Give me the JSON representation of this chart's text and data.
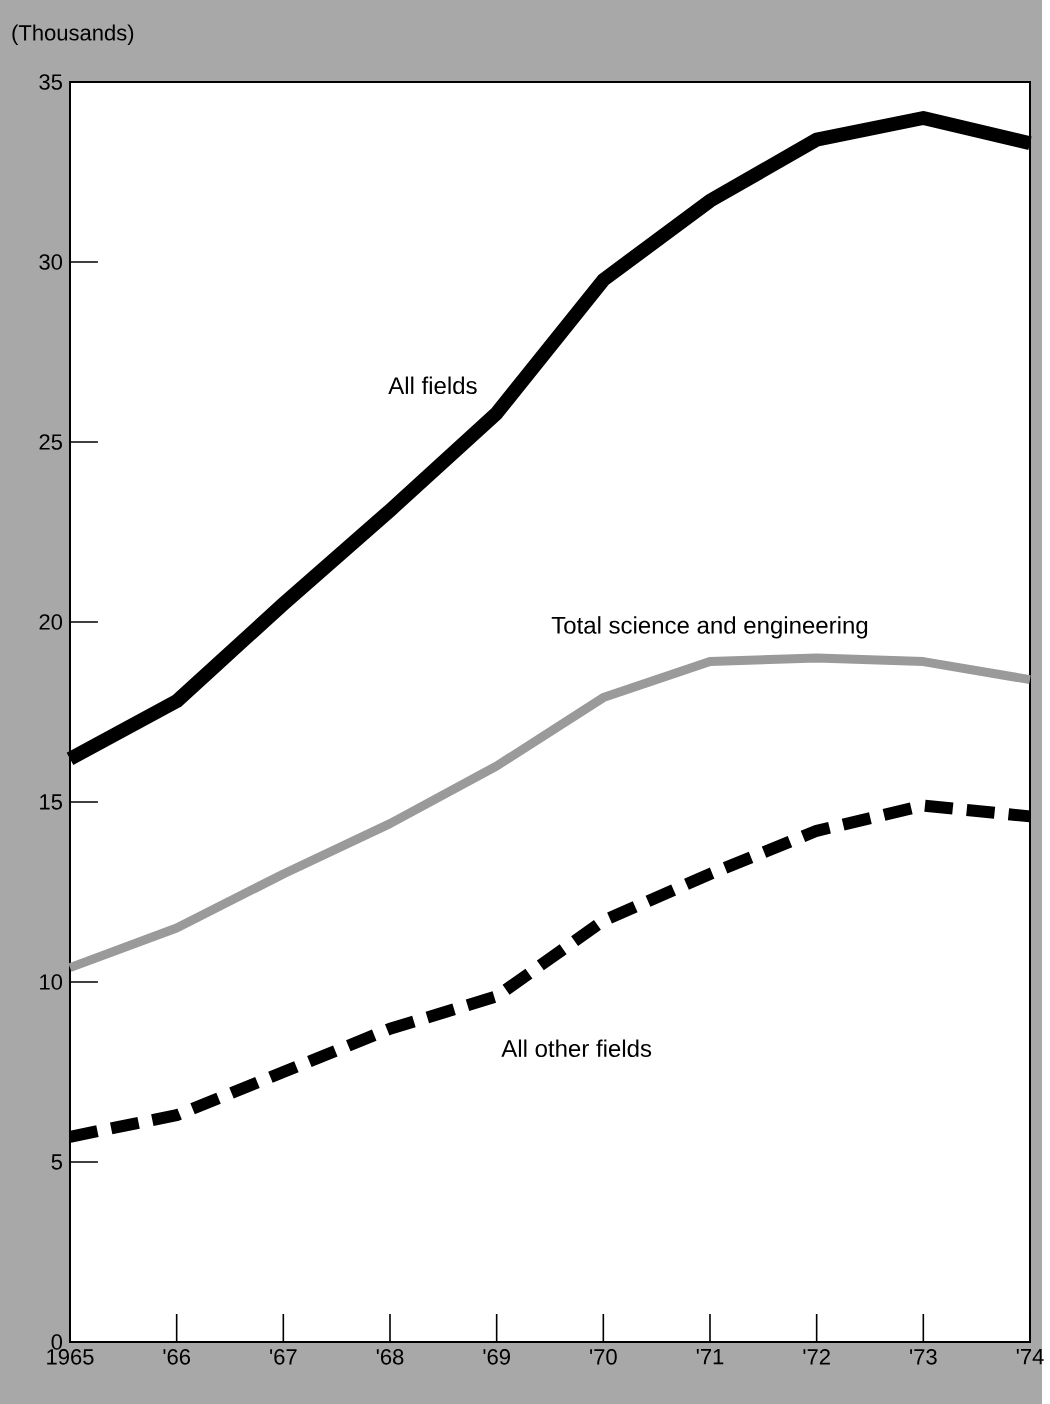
{
  "chart_data": {
    "type": "line",
    "ylabel": "(Thousands)",
    "x": [
      1965,
      1966,
      1967,
      1968,
      1969,
      1970,
      1971,
      1972,
      1973,
      1974
    ],
    "series": [
      {
        "name": "All fields",
        "color": "#000000",
        "line_style": "solid",
        "values": [
          16.2,
          17.8,
          20.5,
          23.1,
          25.8,
          29.5,
          31.7,
          33.4,
          34.0,
          33.3
        ]
      },
      {
        "name": "Total science and engineering",
        "color": "#9a9a9a",
        "line_style": "solid",
        "values": [
          10.4,
          11.5,
          13.0,
          14.4,
          16.0,
          17.9,
          18.9,
          19.0,
          18.9,
          18.4
        ]
      },
      {
        "name": "All other fields",
        "color": "#000000",
        "line_style": "dashed",
        "values": [
          5.7,
          6.3,
          7.5,
          8.7,
          9.6,
          11.7,
          13.0,
          14.2,
          14.9,
          14.6
        ]
      }
    ],
    "xlim": [
      1965,
      1974
    ],
    "ylim": [
      0,
      35
    ],
    "xticks": [
      {
        "value": 1965,
        "label": "1965"
      },
      {
        "value": 1966,
        "label": "'66"
      },
      {
        "value": 1967,
        "label": "'67"
      },
      {
        "value": 1968,
        "label": "'68"
      },
      {
        "value": 1969,
        "label": "'69"
      },
      {
        "value": 1970,
        "label": "'70"
      },
      {
        "value": 1971,
        "label": "'71"
      },
      {
        "value": 1972,
        "label": "'72"
      },
      {
        "value": 1973,
        "label": "'73"
      },
      {
        "value": 1974,
        "label": "'74"
      }
    ],
    "yticks": [
      0,
      5,
      10,
      15,
      20,
      25,
      30,
      35
    ],
    "grid": false,
    "legend": false,
    "marker": "none"
  }
}
